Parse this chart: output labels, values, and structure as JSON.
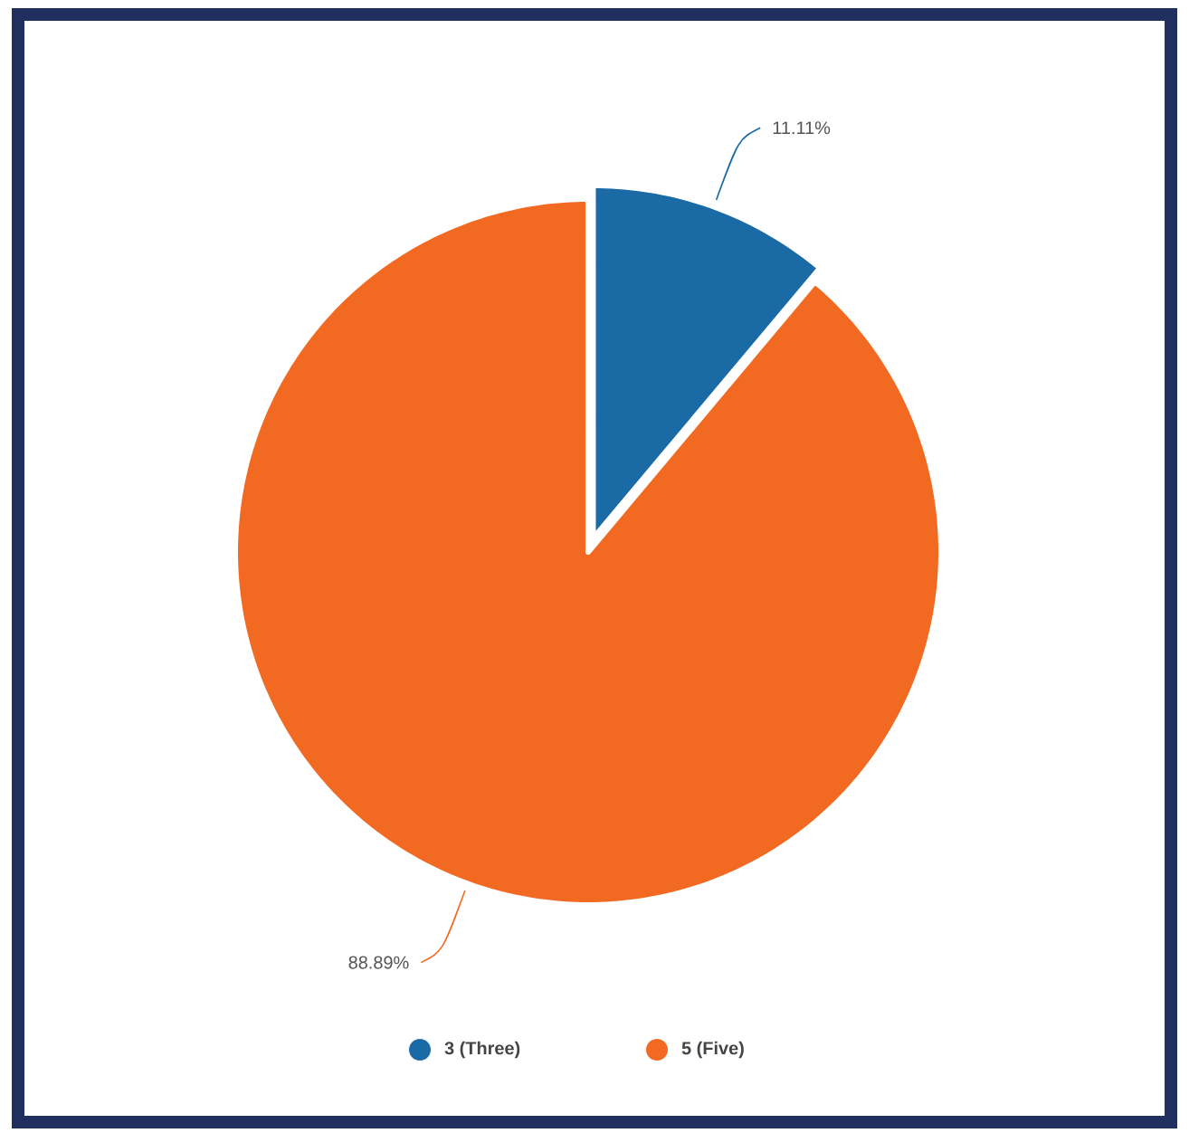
{
  "chart_data": {
    "type": "pie",
    "categories": [
      "3 (Three)",
      "5 (Five)"
    ],
    "values": [
      11.11,
      88.89
    ],
    "colors": [
      "#1a6aa6",
      "#f26a22"
    ],
    "value_labels": [
      "11.11%",
      "88.89%"
    ],
    "legend": "bottom"
  }
}
